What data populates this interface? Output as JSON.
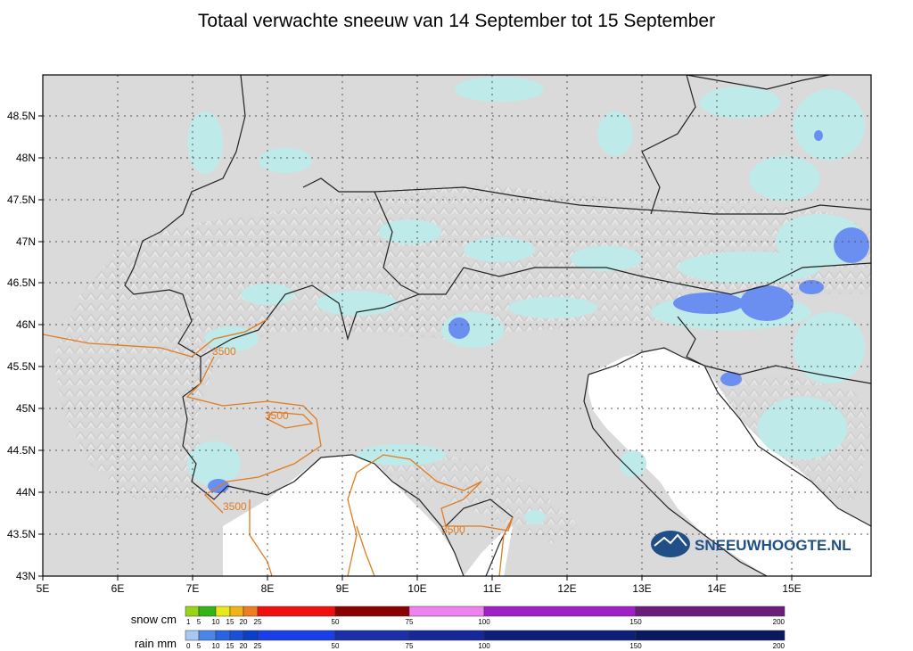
{
  "title": "Totaal verwachte sneeuw van 14 September tot 15 September",
  "lon_labels": [
    "5E",
    "6E",
    "7E",
    "8E",
    "9E",
    "10E",
    "11E",
    "12E",
    "13E",
    "14E",
    "15E"
  ],
  "lat_labels": [
    "48.5N",
    "48N",
    "47.5N",
    "47N",
    "46.5N",
    "46N",
    "45.5N",
    "45N",
    "44.5N",
    "44N",
    "43.5N",
    "43N"
  ],
  "contour_label": "3500",
  "logo": {
    "text": "SNEEUWHOOGTE.NL"
  },
  "legend": {
    "snow": {
      "label": "snow cm",
      "ticks": [
        "1",
        "5",
        "10",
        "15",
        "20",
        "25",
        "50",
        "75",
        "100",
        "150",
        "200"
      ],
      "colors": [
        "#9ad41a",
        "#33b51a",
        "#e8e81a",
        "#f2b21a",
        "#ef7d21",
        "#f01010",
        "#8b0000",
        "#ee82ee",
        "#a020c8",
        "#6a1e7a"
      ]
    },
    "rain": {
      "label": "rain mm",
      "ticks": [
        "0",
        "5",
        "10",
        "15",
        "20",
        "25",
        "50",
        "75",
        "100",
        "150",
        "200"
      ],
      "colors": [
        "#a8c8f0",
        "#4a86e8",
        "#2a63e0",
        "#1a4fd8",
        "#0a3fc8",
        "#1a3fe8",
        "#1a2fa8",
        "#16279a",
        "#0e1f7a",
        "#0a1860"
      ]
    }
  },
  "colors": {
    "light_snow": "#bfeaea",
    "moderate_snow": "#6b8ff0",
    "contour": "#e07b20"
  }
}
